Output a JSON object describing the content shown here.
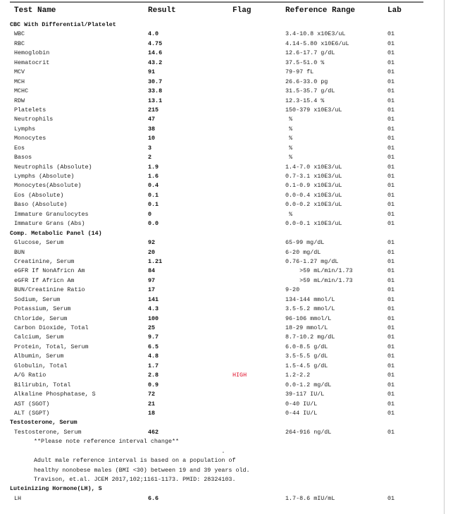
{
  "header": {
    "test_name": "Test Name",
    "result": "Result",
    "flag": "Flag",
    "reference_range": "Reference Range",
    "lab": "Lab"
  },
  "colors": {
    "flag_high": "#e0102a"
  },
  "sections": [
    {
      "title": "CBC With Differential/Platelet",
      "rows": [
        {
          "name": "WBC",
          "result": "4.0",
          "flag": "",
          "range": "3.4-10.8 x10E3/uL",
          "lab": "01"
        },
        {
          "name": "RBC",
          "result": "4.75",
          "flag": "",
          "range": "4.14-5.80 x10E6/uL",
          "lab": "01"
        },
        {
          "name": "Hemoglobin",
          "result": "14.6",
          "flag": "",
          "range": "12.6-17.7 g/dL",
          "lab": "01"
        },
        {
          "name": "Hematocrit",
          "result": "43.2",
          "flag": "",
          "range": "37.5-51.0 %",
          "lab": "01"
        },
        {
          "name": "MCV",
          "result": "91",
          "flag": "",
          "range": "79-97 fL",
          "lab": "01"
        },
        {
          "name": "MCH",
          "result": "30.7",
          "flag": "",
          "range": "26.6-33.0 pg",
          "lab": "01"
        },
        {
          "name": "MCHC",
          "result": "33.8",
          "flag": "",
          "range": "31.5-35.7 g/dL",
          "lab": "01"
        },
        {
          "name": "RDW",
          "result": "13.1",
          "flag": "",
          "range": "12.3-15.4 %",
          "lab": "01"
        },
        {
          "name": "Platelets",
          "result": "215",
          "flag": "",
          "range": "150-379 x10E3/uL",
          "lab": "01"
        },
        {
          "name": "Neutrophils",
          "result": "47",
          "flag": "",
          "range": " %",
          "lab": "01"
        },
        {
          "name": "Lymphs",
          "result": "38",
          "flag": "",
          "range": " %",
          "lab": "01"
        },
        {
          "name": "Monocytes",
          "result": "10",
          "flag": "",
          "range": " %",
          "lab": "01"
        },
        {
          "name": "Eos",
          "result": "3",
          "flag": "",
          "range": " %",
          "lab": "01"
        },
        {
          "name": "Basos",
          "result": "2",
          "flag": "",
          "range": " %",
          "lab": "01"
        },
        {
          "name": "Neutrophils (Absolute)",
          "result": "1.9",
          "flag": "",
          "range": "1.4-7.0 x10E3/uL",
          "lab": "01"
        },
        {
          "name": "Lymphs (Absolute)",
          "result": "1.6",
          "flag": "",
          "range": "0.7-3.1 x10E3/uL",
          "lab": "01"
        },
        {
          "name": "Monocytes(Absolute)",
          "result": "0.4",
          "flag": "",
          "range": "0.1-0.9 x10E3/uL",
          "lab": "01"
        },
        {
          "name": "Eos (Absolute)",
          "result": "0.1",
          "flag": "",
          "range": "0.0-0.4 x10E3/uL",
          "lab": "01"
        },
        {
          "name": "Baso (Absolute)",
          "result": "0.1",
          "flag": "",
          "range": "0.0-0.2 x10E3/uL",
          "lab": "01"
        },
        {
          "name": "Immature Granulocytes",
          "result": "0",
          "flag": "",
          "range": " %",
          "lab": "01"
        },
        {
          "name": "Immature Grans (Abs)",
          "result": "0.0",
          "flag": "",
          "range": "0.0-0.1 x10E3/uL",
          "lab": "01"
        }
      ]
    },
    {
      "title": "Comp. Metabolic Panel (14)",
      "rows": [
        {
          "name": "Glucose, Serum",
          "result": "92",
          "flag": "",
          "range": "65-99 mg/dL",
          "lab": "01"
        },
        {
          "name": "BUN",
          "result": "20",
          "flag": "",
          "range": "6-20 mg/dL",
          "lab": "01"
        },
        {
          "name": "Creatinine, Serum",
          "result": "1.21",
          "flag": "",
          "range": "0.76-1.27 mg/dL",
          "lab": "01"
        },
        {
          "name": "eGFR If NonAfricn Am",
          "result": "84",
          "flag": "",
          "range": "    >59 mL/min/1.73",
          "lab": "01"
        },
        {
          "name": "eGFR If Africn Am",
          "result": "97",
          "flag": "",
          "range": "    >59 mL/min/1.73",
          "lab": "01"
        },
        {
          "name": "BUN/Creatinine Ratio",
          "result": "17",
          "flag": "",
          "range": "9-20",
          "lab": "01"
        },
        {
          "name": "Sodium, Serum",
          "result": "141",
          "flag": "",
          "range": "134-144 mmol/L",
          "lab": "01"
        },
        {
          "name": "Potassium, Serum",
          "result": "4.3",
          "flag": "",
          "range": "3.5-5.2 mmol/L",
          "lab": "01"
        },
        {
          "name": "Chloride, Serum",
          "result": "100",
          "flag": "",
          "range": "96-106 mmol/L",
          "lab": "01"
        },
        {
          "name": "Carbon Dioxide, Total",
          "result": "25",
          "flag": "",
          "range": "18-29 mmol/L",
          "lab": "01"
        },
        {
          "name": "Calcium, Serum",
          "result": "9.7",
          "flag": "",
          "range": "8.7-10.2 mg/dL",
          "lab": "01"
        },
        {
          "name": "Protein, Total, Serum",
          "result": "6.5",
          "flag": "",
          "range": "6.0-8.5 g/dL",
          "lab": "01"
        },
        {
          "name": "Albumin, Serum",
          "result": "4.8",
          "flag": "",
          "range": "3.5-5.5 g/dL",
          "lab": "01"
        },
        {
          "name": "Globulin, Total",
          "result": "1.7",
          "flag": "",
          "range": "1.5-4.5 g/dL",
          "lab": "01"
        },
        {
          "name": "A/G Ratio",
          "result": "2.8",
          "flag": "HIGH",
          "range": "1.2-2.2",
          "lab": "01"
        },
        {
          "name": "Bilirubin, Total",
          "result": "0.9",
          "flag": "",
          "range": "0.0-1.2 mg/dL",
          "lab": "01"
        },
        {
          "name": "Alkaline Phosphatase, S",
          "result": "72",
          "flag": "",
          "range": "39-117 IU/L",
          "lab": "01"
        },
        {
          "name": "AST (SGOT)",
          "result": "21",
          "flag": "",
          "range": "0-40 IU/L",
          "lab": "01"
        },
        {
          "name": "ALT (SGPT)",
          "result": "18",
          "flag": "",
          "range": "0-44 IU/L",
          "lab": "01"
        }
      ]
    },
    {
      "title": "Testosterone, Serum",
      "rows": [
        {
          "name": "Testosterone, Serum",
          "result": "462",
          "flag": "",
          "range": "264-916 ng/dL",
          "lab": "01"
        }
      ],
      "notes": [
        "**Please note reference interval change**",
        "                                                     .",
        "Adult male reference interval is based on a population of",
        "healthy nonobese males (BMI <30) between 19 and 39 years old.",
        "Travison, et.al. JCEM 2017,102;1161-1173. PMID: 28324103."
      ]
    },
    {
      "title": "Luteinizing Hormone(LH), S",
      "rows": [
        {
          "name": "LH",
          "result": "6.6",
          "flag": "",
          "range": "1.7-8.6 mIU/mL",
          "lab": "01"
        }
      ]
    }
  ]
}
